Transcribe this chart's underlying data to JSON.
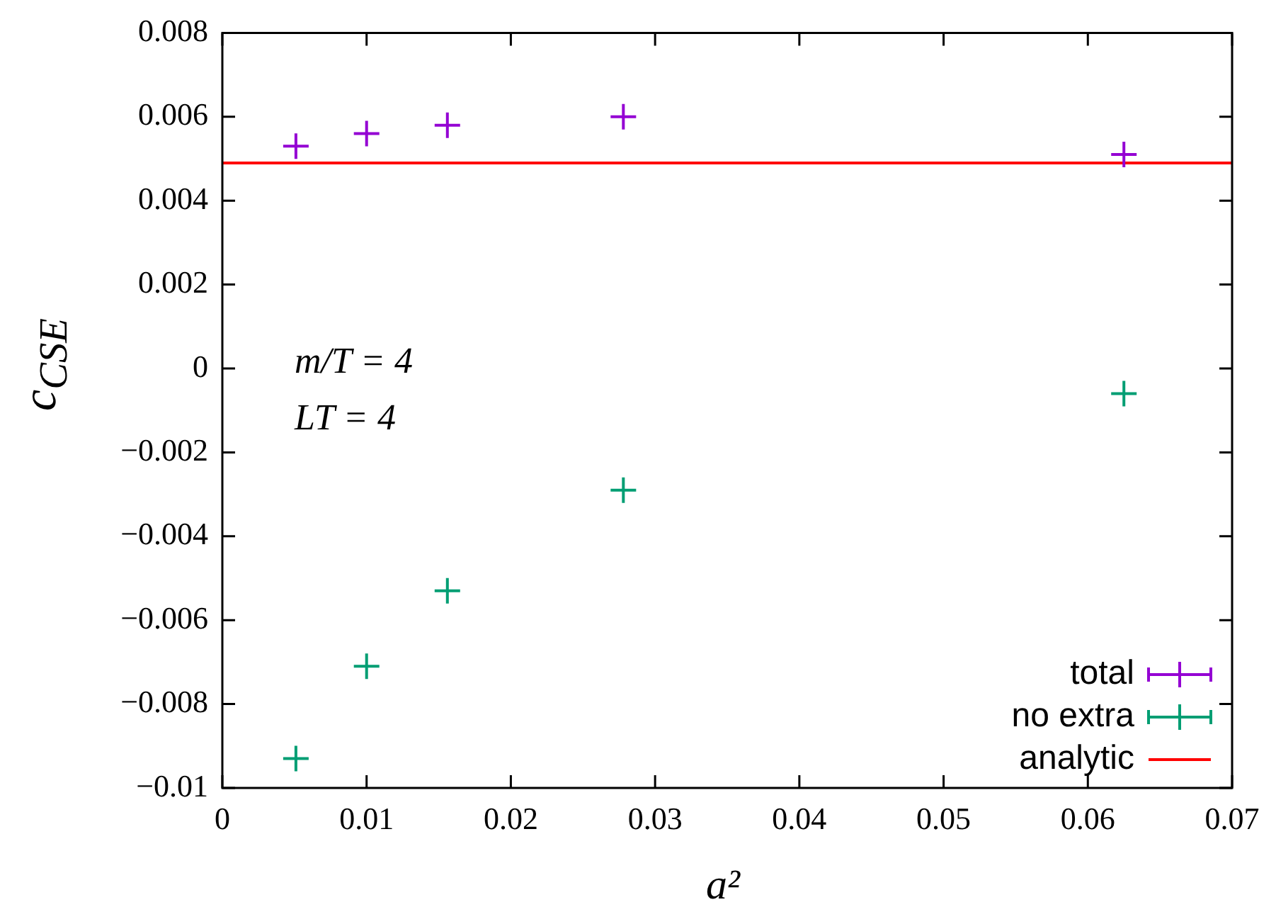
{
  "chart_data": {
    "type": "scatter",
    "xlabel": "a²",
    "ylabel": "c$_{CSE}$",
    "annotations": [
      "m/T = 4",
      "LT = 4"
    ],
    "xlim": [
      0,
      0.07
    ],
    "xticks": [
      0,
      0.01,
      0.02,
      0.03,
      0.04,
      0.05,
      0.06,
      0.07
    ],
    "ylim": [
      -0.01,
      0.008
    ],
    "yticks": [
      {
        "value": -0.01,
        "label": "−0.01"
      },
      {
        "value": -0.008,
        "label": "−0.008"
      },
      {
        "value": -0.006,
        "label": "−0.006"
      },
      {
        "value": -0.004,
        "label": "−0.004"
      },
      {
        "value": -0.002,
        "label": "−0.002"
      },
      0,
      0.002,
      0.004,
      0.006,
      0.008
    ],
    "grid": false,
    "legend": "bottom right",
    "series": [
      {
        "name": "total",
        "color": "#9400d3",
        "marker": "cross",
        "x": [
          0.0051,
          0.01,
          0.0156,
          0.0278,
          0.0625
        ],
        "values": [
          0.0053,
          0.0056,
          0.0058,
          0.006,
          0.0051
        ]
      },
      {
        "name": "no extra",
        "color": "#009e73",
        "marker": "cross",
        "x": [
          0.0051,
          0.01,
          0.0156,
          0.0278,
          0.0625
        ],
        "values": [
          -0.0093,
          -0.0071,
          -0.0053,
          -0.0029,
          -0.0006
        ]
      },
      {
        "name": "analytic",
        "type": "line",
        "color": "#ff0000",
        "x": [
          0,
          0.07
        ],
        "values": [
          0.0049,
          0.0049
        ]
      }
    ]
  }
}
